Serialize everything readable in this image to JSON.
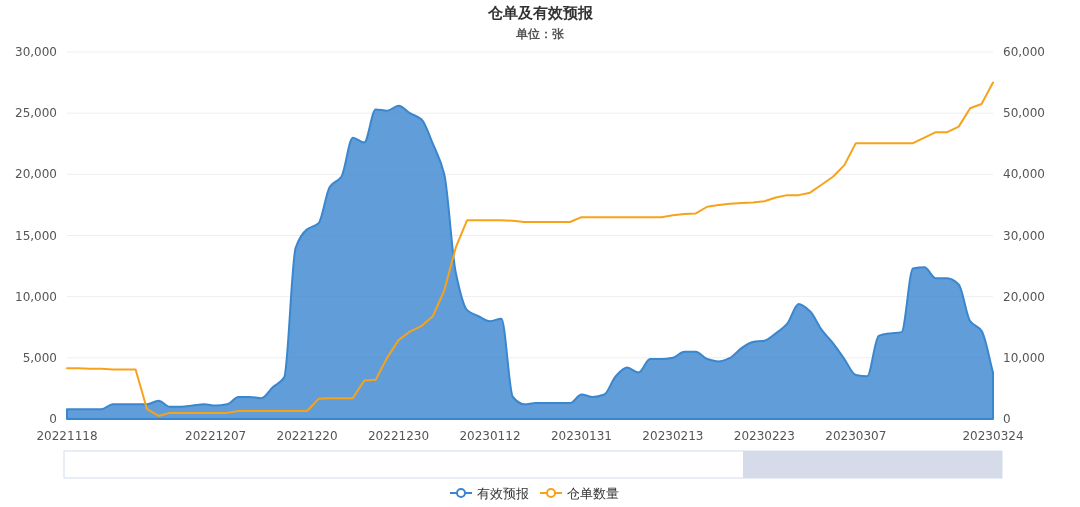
{
  "chart_data": {
    "type": "area",
    "title": "仓单及有效预报",
    "subtitle": "单位：张",
    "categories": [
      "20221118",
      null,
      null,
      null,
      null,
      null,
      null,
      null,
      null,
      null,
      null,
      null,
      null,
      "20221207",
      null,
      null,
      null,
      null,
      null,
      null,
      null,
      "20221220",
      null,
      null,
      null,
      null,
      null,
      null,
      null,
      "20221230",
      null,
      null,
      null,
      null,
      null,
      null,
      null,
      "20230112",
      null,
      null,
      null,
      null,
      null,
      null,
      null,
      "20230131",
      null,
      null,
      null,
      null,
      null,
      null,
      null,
      "20230213",
      null,
      null,
      null,
      null,
      null,
      null,
      null,
      "20230223",
      null,
      null,
      null,
      null,
      null,
      null,
      null,
      "20230307",
      null,
      null,
      null,
      null,
      null,
      null,
      null,
      null,
      null,
      null,
      null,
      "20230324"
    ],
    "series": [
      {
        "name": "有效预报",
        "color": "#3a86cf",
        "values": [
          800,
          800,
          800,
          800,
          1200,
          1200,
          1200,
          1200,
          1500,
          1000,
          1000,
          1100,
          1200,
          1100,
          1200,
          1800,
          1800,
          1700,
          2600,
          3400,
          14000,
          15500,
          16000,
          19000,
          19800,
          23000,
          22600,
          25300,
          25200,
          25600,
          25000,
          24500,
          22500,
          20000,
          12000,
          8900,
          8400,
          8000,
          8200,
          1800,
          1200,
          1300,
          1300,
          1300,
          1300,
          2000,
          1800,
          2000,
          3500,
          4200,
          3800,
          4900,
          4900,
          5000,
          5500,
          5500,
          4900,
          4700,
          5000,
          5800,
          6300,
          6400,
          7000,
          7800,
          9400,
          8800,
          7300,
          6200,
          4900,
          3600,
          3500,
          6800,
          7000,
          7100,
          12300,
          12400,
          11500,
          11500,
          11000,
          8000,
          7200,
          3800
        ]
      },
      {
        "name": "仓单数量",
        "type": "line",
        "axis": "y2",
        "color": "#f7a21b",
        "values": [
          8300,
          8300,
          8200,
          8200,
          8100,
          8100,
          8100,
          1600,
          500,
          1000,
          1000,
          1000,
          1000,
          1000,
          1000,
          1300,
          1300,
          1300,
          1300,
          1300,
          1300,
          1300,
          3300,
          3400,
          3400,
          3400,
          6300,
          6400,
          10000,
          12900,
          14300,
          15200,
          16800,
          21000,
          28000,
          32500,
          32500,
          32500,
          32500,
          32400,
          32200,
          32200,
          32200,
          32200,
          32200,
          33000,
          33000,
          33000,
          33000,
          33000,
          33000,
          33000,
          33000,
          33300,
          33500,
          33600,
          34700,
          35000,
          35200,
          35300,
          35400,
          35600,
          36200,
          36600,
          36600,
          37000,
          38300,
          39600,
          41500,
          45100,
          45100,
          45100,
          45100,
          45100,
          45100,
          46000,
          46900,
          46900,
          47800,
          50800,
          51500,
          55000
        ]
      }
    ],
    "ylim": [
      0,
      30000
    ],
    "yticks": [
      0,
      {
        "value": 5000,
        "label": "5,000"
      },
      {
        "value": 10000,
        "label": "10,000"
      },
      {
        "value": 15000,
        "label": "15,000"
      },
      {
        "value": 20000,
        "label": "20,000"
      },
      {
        "value": 25000,
        "label": "25,000"
      },
      {
        "value": 30000,
        "label": "30,000"
      }
    ],
    "y2lim": [
      0,
      60000
    ],
    "y2ticks": [
      0,
      {
        "value": 10000,
        "label": "10,000"
      },
      {
        "value": 20000,
        "label": "20,000"
      },
      {
        "value": 30000,
        "label": "30,000"
      },
      {
        "value": 40000,
        "label": "40,000"
      },
      {
        "value": 50000,
        "label": "50,000"
      },
      {
        "value": 60000,
        "label": "60,000"
      }
    ],
    "grid": "y",
    "legend": "bottom"
  }
}
